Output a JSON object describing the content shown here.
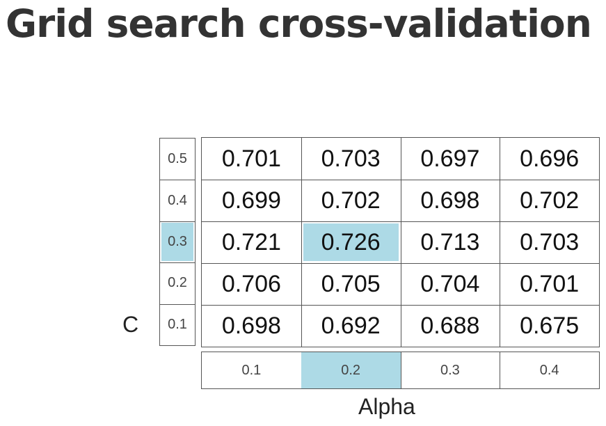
{
  "title": "Grid search cross-validation",
  "c_axis": {
    "label": "C",
    "values": [
      "0.5",
      "0.4",
      "0.3",
      "0.2",
      "0.1"
    ]
  },
  "alpha_axis": {
    "label": "Alpha",
    "values": [
      "0.1",
      "0.2",
      "0.3",
      "0.4"
    ]
  },
  "scores": [
    [
      "0.701",
      "0.703",
      "0.697",
      "0.696"
    ],
    [
      "0.699",
      "0.702",
      "0.698",
      "0.702"
    ],
    [
      "0.721",
      "0.726",
      "0.713",
      "0.703"
    ],
    [
      "0.706",
      "0.705",
      "0.704",
      "0.701"
    ],
    [
      "0.698",
      "0.692",
      "0.688",
      "0.675"
    ]
  ],
  "highlight": {
    "c": "0.3",
    "alpha": "0.2",
    "color": "#ADDAE6"
  }
}
